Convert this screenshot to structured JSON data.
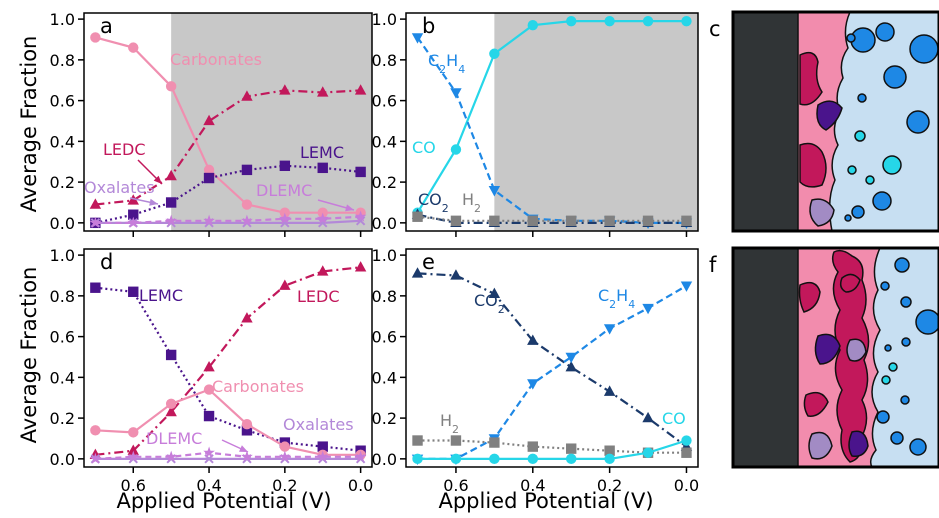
{
  "figure": {
    "xlabel": "Applied Potential (V)",
    "ylabel": "Average Fraction",
    "xticks": [
      "0.6",
      "0.4",
      "0.2",
      "0.0"
    ],
    "yticks": [
      "0.0",
      "0.2",
      "0.4",
      "0.6",
      "0.8",
      "1.0"
    ],
    "panel_c_label": "c",
    "panel_f_label": "f"
  },
  "colors": {
    "carbonates": "#f08fb0",
    "ledc": "#c2185b",
    "lemc": "#4a148c",
    "oxalates": "#b388d8",
    "dlemc": "#c77dda",
    "co": "#26d6e8",
    "c2h4": "#1e88e5",
    "co2": "#1b3a6b",
    "h2": "#808080",
    "shade": "#c8c8c8"
  },
  "chart_data": [
    {
      "panel": "a",
      "type": "line",
      "x": [
        0.7,
        0.6,
        0.5,
        0.4,
        0.3,
        0.2,
        0.1,
        0.0
      ],
      "xlim": [
        0.73,
        -0.03
      ],
      "ylim": [
        -0.04,
        1.03
      ],
      "shaded_region": [
        0.5,
        -0.03
      ],
      "series": [
        {
          "name": "Carbonates",
          "values": [
            0.91,
            0.86,
            0.67,
            0.26,
            0.09,
            0.05,
            0.05,
            0.05
          ]
        },
        {
          "name": "LEDC",
          "values": [
            0.09,
            0.11,
            0.23,
            0.5,
            0.62,
            0.65,
            0.64,
            0.65
          ]
        },
        {
          "name": "LEMC",
          "values": [
            0.0,
            0.04,
            0.1,
            0.22,
            0.26,
            0.28,
            0.27,
            0.25
          ]
        },
        {
          "name": "Oxalates",
          "values": [
            0.0,
            0.0,
            0.0,
            0.0,
            0.0,
            0.0,
            0.0,
            0.01
          ]
        },
        {
          "name": "DLEMC",
          "values": [
            0.0,
            0.0,
            0.01,
            0.01,
            0.01,
            0.02,
            0.02,
            0.03
          ]
        }
      ]
    },
    {
      "panel": "b",
      "type": "line",
      "x": [
        0.7,
        0.6,
        0.5,
        0.4,
        0.3,
        0.2,
        0.1,
        0.0
      ],
      "xlim": [
        0.73,
        -0.03
      ],
      "ylim": [
        -0.04,
        1.03
      ],
      "shaded_region": [
        0.5,
        -0.03
      ],
      "series": [
        {
          "name": "CO",
          "values": [
            0.05,
            0.36,
            0.83,
            0.97,
            0.99,
            0.99,
            0.99,
            0.99
          ]
        },
        {
          "name": "C2H4",
          "values": [
            0.91,
            0.64,
            0.16,
            0.02,
            0.01,
            0.01,
            0.0,
            0.0
          ]
        },
        {
          "name": "CO2",
          "values": [
            0.04,
            0.0,
            0.0,
            0.0,
            0.0,
            0.0,
            0.0,
            0.0
          ]
        },
        {
          "name": "H2",
          "values": [
            0.03,
            0.01,
            0.01,
            0.01,
            0.01,
            0.01,
            0.01,
            0.01
          ]
        }
      ]
    },
    {
      "panel": "d",
      "type": "line",
      "x": [
        0.7,
        0.6,
        0.5,
        0.4,
        0.3,
        0.2,
        0.1,
        0.0
      ],
      "xlim": [
        0.73,
        -0.03
      ],
      "ylim": [
        -0.04,
        1.03
      ],
      "series": [
        {
          "name": "LEDC",
          "values": [
            0.02,
            0.04,
            0.23,
            0.45,
            0.69,
            0.85,
            0.92,
            0.94
          ]
        },
        {
          "name": "LEMC",
          "values": [
            0.84,
            0.82,
            0.51,
            0.21,
            0.14,
            0.08,
            0.06,
            0.04
          ]
        },
        {
          "name": "Carbonates",
          "values": [
            0.14,
            0.13,
            0.27,
            0.34,
            0.17,
            0.06,
            0.02,
            0.02
          ]
        },
        {
          "name": "Oxalates",
          "values": [
            0.0,
            0.0,
            0.0,
            0.0,
            0.0,
            0.0,
            0.0,
            0.0
          ]
        },
        {
          "name": "DLEMC",
          "values": [
            0.0,
            0.01,
            0.01,
            0.03,
            0.01,
            0.01,
            0.01,
            0.01
          ]
        }
      ]
    },
    {
      "panel": "e",
      "type": "line",
      "x": [
        0.7,
        0.6,
        0.5,
        0.4,
        0.3,
        0.2,
        0.1,
        0.0
      ],
      "xlim": [
        0.73,
        -0.03
      ],
      "ylim": [
        -0.04,
        1.03
      ],
      "series": [
        {
          "name": "CO2",
          "values": [
            0.91,
            0.9,
            0.81,
            0.58,
            0.45,
            0.33,
            0.2,
            0.06
          ]
        },
        {
          "name": "C2H4",
          "values": [
            0.0,
            0.0,
            0.1,
            0.37,
            0.5,
            0.64,
            0.74,
            0.85
          ]
        },
        {
          "name": "H2",
          "values": [
            0.09,
            0.09,
            0.08,
            0.06,
            0.05,
            0.04,
            0.03,
            0.03
          ]
        },
        {
          "name": "CO",
          "values": [
            0.0,
            0.0,
            0.0,
            0.0,
            0.0,
            0.0,
            0.03,
            0.09
          ]
        }
      ]
    }
  ],
  "labels": {
    "a": {
      "panel": "a",
      "carbonates": "Carbonates",
      "ledc": "LEDC",
      "lemc": "LEMC",
      "oxalates": "Oxalates",
      "dlemc": "DLEMC"
    },
    "b": {
      "panel": "b",
      "c2h4_main": "C",
      "c2h4_sub1": "2",
      "c2h4_mid": "H",
      "c2h4_sub2": "4",
      "co": "CO",
      "co2_main": "CO",
      "co2_sub": "2",
      "h2_main": "H",
      "h2_sub": "2"
    },
    "d": {
      "panel": "d",
      "lemc": "LEMC",
      "ledc": "LEDC",
      "carbonates": "Carbonates",
      "oxalates": "Oxalates",
      "dlemc": "DLEMC"
    },
    "e": {
      "panel": "e",
      "co2_main": "CO",
      "co2_sub": "2",
      "c2h4_main": "C",
      "c2h4_sub1": "2",
      "c2h4_mid": "H",
      "c2h4_sub2": "4",
      "h2_main": "H",
      "h2_sub": "2",
      "co": "CO"
    }
  }
}
